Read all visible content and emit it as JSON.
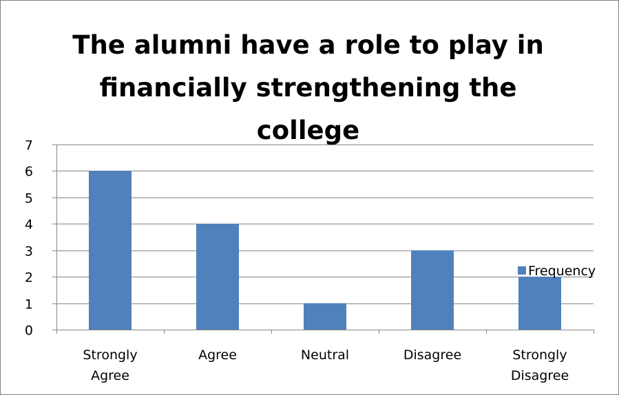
{
  "chart_data": {
    "type": "bar",
    "title_lines": [
      "The alumni have a role to play in",
      "financially strengthening the",
      "college"
    ],
    "title": "The alumni have a role to play in financially strengthening the college",
    "categories": [
      [
        "Strongly",
        "Agree"
      ],
      [
        "Agree"
      ],
      [
        "Neutral"
      ],
      [
        "Disagree"
      ],
      [
        "Strongly",
        "Disagree"
      ]
    ],
    "series": [
      {
        "name": "Frequency",
        "values": [
          6,
          4,
          1,
          3,
          2
        ],
        "color": "#4f81bd"
      }
    ],
    "ylim": [
      0,
      7
    ],
    "yticks": [
      0,
      1,
      2,
      3,
      4,
      5,
      6,
      7
    ],
    "grid": true,
    "legend_position": "right",
    "xlabel": "",
    "ylabel": ""
  }
}
